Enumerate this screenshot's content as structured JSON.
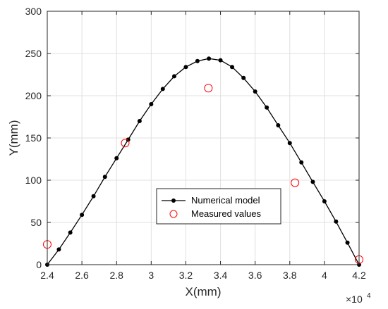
{
  "chart_data": {
    "type": "line",
    "xlabel": "X(mm)",
    "ylabel": "Y(mm)",
    "x_exponent_label": "×10",
    "x_exponent_power": "4",
    "xlim": [
      24000,
      42000
    ],
    "ylim": [
      0,
      300
    ],
    "xticks": [
      24000,
      26000,
      28000,
      30000,
      32000,
      34000,
      36000,
      38000,
      40000,
      42000
    ],
    "xtick_labels": [
      "2.4",
      "2.6",
      "2.8",
      "3",
      "3.2",
      "3.4",
      "3.6",
      "3.8",
      "4",
      "4.2"
    ],
    "yticks": [
      0,
      50,
      100,
      150,
      200,
      250,
      300
    ],
    "ytick_labels": [
      "0",
      "50",
      "100",
      "150",
      "200",
      "250",
      "300"
    ],
    "grid": true,
    "legend_position": "bottom-center",
    "series": [
      {
        "name": "Numerical model",
        "style": "line-dot",
        "color": "#000000",
        "x": [
          24000,
          24670,
          25330,
          26000,
          26670,
          27330,
          28000,
          28670,
          29330,
          30000,
          30670,
          31330,
          32000,
          32670,
          33330,
          34000,
          34670,
          35330,
          36000,
          36670,
          37330,
          38000,
          38670,
          39330,
          40000,
          40670,
          41330,
          42000
        ],
        "y": [
          0,
          18,
          38,
          59,
          81,
          104,
          126,
          148,
          170,
          190,
          208,
          223,
          234,
          241,
          244,
          242,
          234,
          221,
          205,
          186,
          165,
          144,
          121,
          98,
          75,
          51,
          26,
          0
        ]
      },
      {
        "name": "Measured values",
        "style": "marker-circle-open",
        "color": "#ff0000",
        "x": [
          24000,
          28500,
          33300,
          38300,
          42000
        ],
        "y": [
          24,
          144,
          209,
          97,
          6
        ]
      }
    ]
  }
}
